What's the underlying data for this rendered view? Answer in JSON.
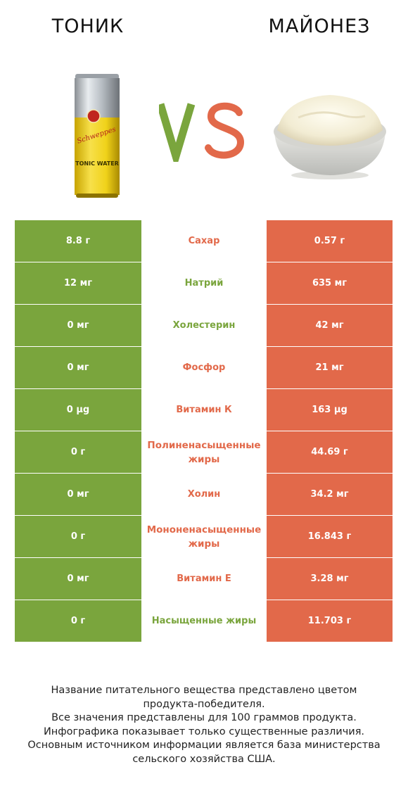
{
  "header": {
    "left_title": "ТОНИК",
    "right_title": "МАЙОНЕЗ",
    "vs_text": "VS"
  },
  "colors": {
    "left": "#7aa53d",
    "right": "#e2694a"
  },
  "left_image": {
    "brand_text": "Schweppes",
    "label_text": "TONIC WATER"
  },
  "rows": [
    {
      "left": "8.8 г",
      "nutrient": "Сахар",
      "right": "0.57 г",
      "winner": "right"
    },
    {
      "left": "12 мг",
      "nutrient": "Натрий",
      "right": "635 мг",
      "winner": "left"
    },
    {
      "left": "0 мг",
      "nutrient": "Холестерин",
      "right": "42 мг",
      "winner": "left"
    },
    {
      "left": "0 мг",
      "nutrient": "Фосфор",
      "right": "21 мг",
      "winner": "right"
    },
    {
      "left": "0 µg",
      "nutrient": "Витамин К",
      "right": "163 µg",
      "winner": "right"
    },
    {
      "left": "0 г",
      "nutrient": "Полиненасыщенные жиры",
      "right": "44.69 г",
      "winner": "right"
    },
    {
      "left": "0 мг",
      "nutrient": "Холин",
      "right": "34.2 мг",
      "winner": "right"
    },
    {
      "left": "0 г",
      "nutrient": "Мононенасыщенные жиры",
      "right": "16.843 г",
      "winner": "right"
    },
    {
      "left": "0 мг",
      "nutrient": "Витамин E",
      "right": "3.28 мг",
      "winner": "right"
    },
    {
      "left": "0 г",
      "nutrient": "Насыщенные жиры",
      "right": "11.703 г",
      "winner": "left"
    }
  ],
  "footer": {
    "lines": [
      "Название питательного вещества представлено цветом",
      "продукта-победителя.",
      "Все значения представлены для 100 граммов продукта.",
      "Инфографика показывает только существенные различия.",
      "Основным источником информации является база министерства",
      "сельского хозяйства США."
    ]
  }
}
